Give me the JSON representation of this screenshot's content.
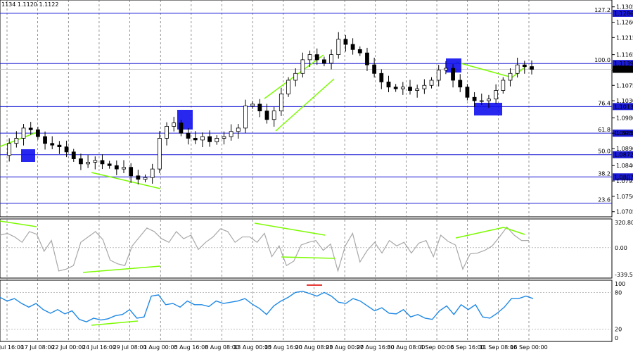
{
  "header": {
    "ohlc_text": "1134 1.1120 1.1122"
  },
  "chart_data": [
    {
      "type": "candlestick",
      "instrument": "EUR/USD",
      "timeframe": "H4",
      "x_tick_labels": [
        "12 Jul 16:00",
        "17 Jul 08:00",
        "22 Jul 00:00",
        "24 Jul 16:00",
        "29 Jul 08:00",
        "1 Aug 00:00",
        "5 Aug 16:00",
        "8 Aug 08:00",
        "13 Aug 00:00",
        "15 Aug 16:00",
        "20 Aug 08:00",
        "23 Aug 00:00",
        "27 Aug 16:00",
        "30 Aug 08:00",
        "4 Sep 00:00",
        "6 Sep 16:00",
        "11 Sep 08:00",
        "16 Sep 00:00"
      ],
      "y_tick_labels": [
        "1.1305",
        "1.1260",
        "1.1215",
        "1.1165",
        "1.1120",
        "1.1075",
        "1.1030",
        "1.0980",
        "1.0935",
        "1.0890",
        "1.0840",
        "1.0795",
        "1.0750",
        "1.0705"
      ],
      "ylim": [
        1.069,
        1.1325
      ],
      "current_price": "1.1122",
      "close_path": [
        1.087,
        1.0905,
        1.092,
        1.095,
        1.0945,
        1.0925,
        1.0905,
        1.09,
        1.0895,
        1.088,
        1.086,
        1.0845,
        1.085,
        1.0855,
        1.0845,
        1.084,
        1.083,
        1.0835,
        1.081,
        1.08,
        1.0805,
        1.083,
        1.092,
        1.0955,
        1.0965,
        1.0935,
        1.092,
        1.0915,
        1.0925,
        1.091,
        1.092,
        1.0925,
        1.094,
        1.095,
        1.1015,
        1.102,
        1.1,
        1.0975,
        1.1,
        1.105,
        1.109,
        1.111,
        1.115,
        1.1165,
        1.115,
        1.114,
        1.1165,
        1.121,
        1.1195,
        1.118,
        1.117,
        1.1135,
        1.111,
        1.1085,
        1.107,
        1.1065,
        1.107,
        1.106,
        1.1065,
        1.1075,
        1.109,
        1.112,
        1.1125,
        1.109,
        1.107,
        1.104,
        1.103,
        1.103,
        1.1035,
        1.106,
        1.109,
        1.111,
        1.1135,
        1.113,
        1.1122
      ],
      "fibonacci_levels": [
        {
          "pct": "127.2",
          "price": "1.1286",
          "value": 1.1286
        },
        {
          "pct": "100.0",
          "price": "1.1139",
          "value": 1.1139
        },
        {
          "pct": "76.4",
          "price": "1.1013",
          "value": 1.1013
        },
        {
          "pct": "61.8",
          "price": "1.0935",
          "value": 1.0935
        },
        {
          "pct": "50.0",
          "price": "1.0872",
          "value": 1.0872
        },
        {
          "pct": "38.2",
          "price": "1.0807",
          "value": 1.0807
        },
        {
          "pct": "23.6",
          "price": "",
          "value": 1.073
        }
      ]
    },
    {
      "type": "line",
      "indicator": "CCI",
      "y_tick_labels": [
        "320.8062",
        "0.00",
        "-339.532"
      ],
      "ylim": [
        -339.532,
        320.8062
      ],
      "values": [
        140,
        160,
        120,
        60,
        180,
        150,
        -40,
        80,
        -260,
        -240,
        -200,
        60,
        120,
        180,
        90,
        -140,
        -180,
        -200,
        20,
        120,
        220,
        180,
        100,
        60,
        180,
        100,
        140,
        -20,
        60,
        120,
        210,
        180,
        60,
        120,
        120,
        60,
        160,
        -100,
        20,
        -200,
        -150,
        30,
        60,
        80,
        -30,
        40,
        -260,
        20,
        160,
        -160,
        -30,
        60,
        -60,
        80,
        20,
        60,
        -60,
        50,
        80,
        -100,
        140,
        70,
        30,
        -240,
        -70,
        -60,
        -30,
        20,
        120,
        230,
        140,
        80,
        80
      ]
    },
    {
      "type": "line",
      "indicator": "RSI",
      "y_tick_labels": [
        "100",
        "80",
        "20",
        "0"
      ],
      "ylim": [
        0,
        100
      ],
      "values": [
        72,
        66,
        70,
        62,
        56,
        62,
        52,
        46,
        52,
        45,
        50,
        36,
        32,
        38,
        35,
        37,
        42,
        44,
        52,
        38,
        40,
        74,
        76,
        60,
        62,
        56,
        66,
        60,
        60,
        57,
        66,
        62,
        64,
        66,
        70,
        61,
        54,
        44,
        58,
        66,
        72,
        80,
        82,
        78,
        74,
        80,
        74,
        64,
        62,
        70,
        66,
        58,
        50,
        55,
        46,
        45,
        52,
        40,
        44,
        38,
        36,
        50,
        58,
        44,
        60,
        52,
        60,
        40,
        38,
        46,
        56,
        70,
        70,
        74,
        70
      ]
    }
  ]
}
